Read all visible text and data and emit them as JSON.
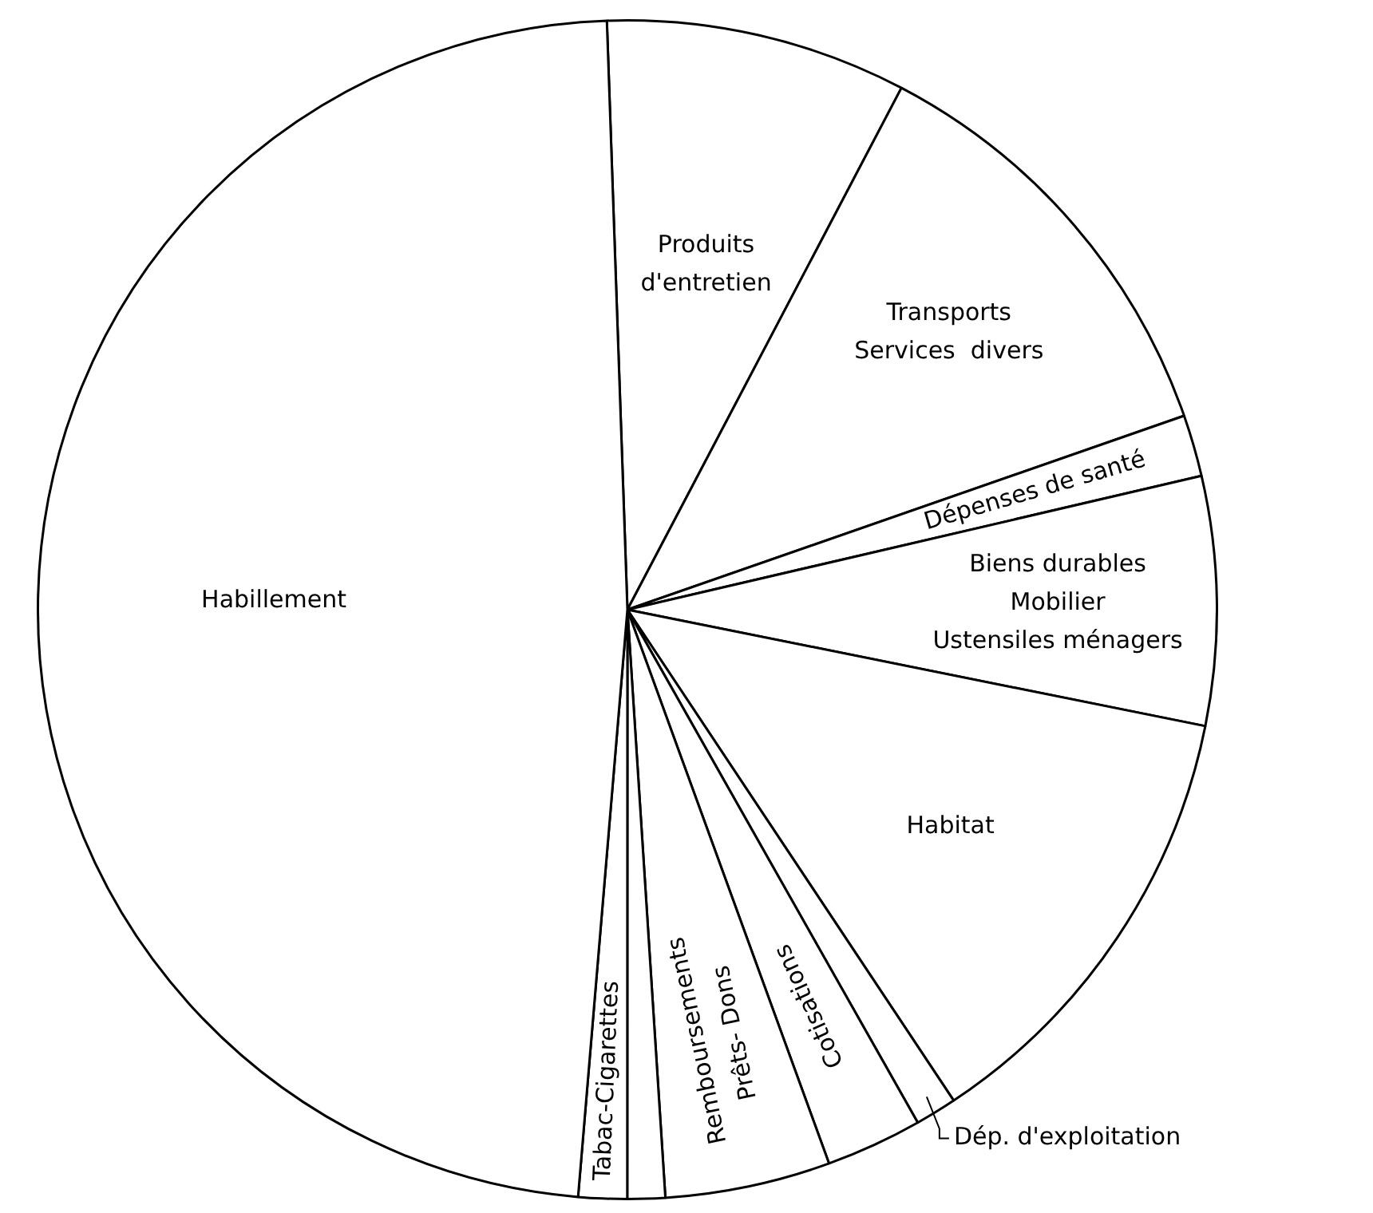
{
  "chart_data": {
    "type": "pie",
    "categories": [
      "Produits\nd'entretien",
      "Transports\nServices  divers",
      "Dépenses de santé",
      "Biens durables\nMobilier\nUstensiles ménagers",
      "Habitat",
      "Dép. d'exploitation",
      "Cotisations",
      "Remboursements\nPrêts- Dons",
      null,
      "Tabac-Cigarettes",
      "Habillement"
    ],
    "values": [
      8.25,
      11.97,
      1.69,
      6.81,
      12.5,
      1.14,
      2.64,
      4.53,
      1.03,
      1.33,
      48.11
    ],
    "colors": [
      "#ffffff",
      "#ffffff",
      "#ffffff",
      "#ffffff",
      "#ffffff",
      "#ffffff",
      "#ffffff",
      "#ffffff",
      "#ffffff",
      "#ffffff",
      "#ffffff"
    ],
    "legend": false
  }
}
